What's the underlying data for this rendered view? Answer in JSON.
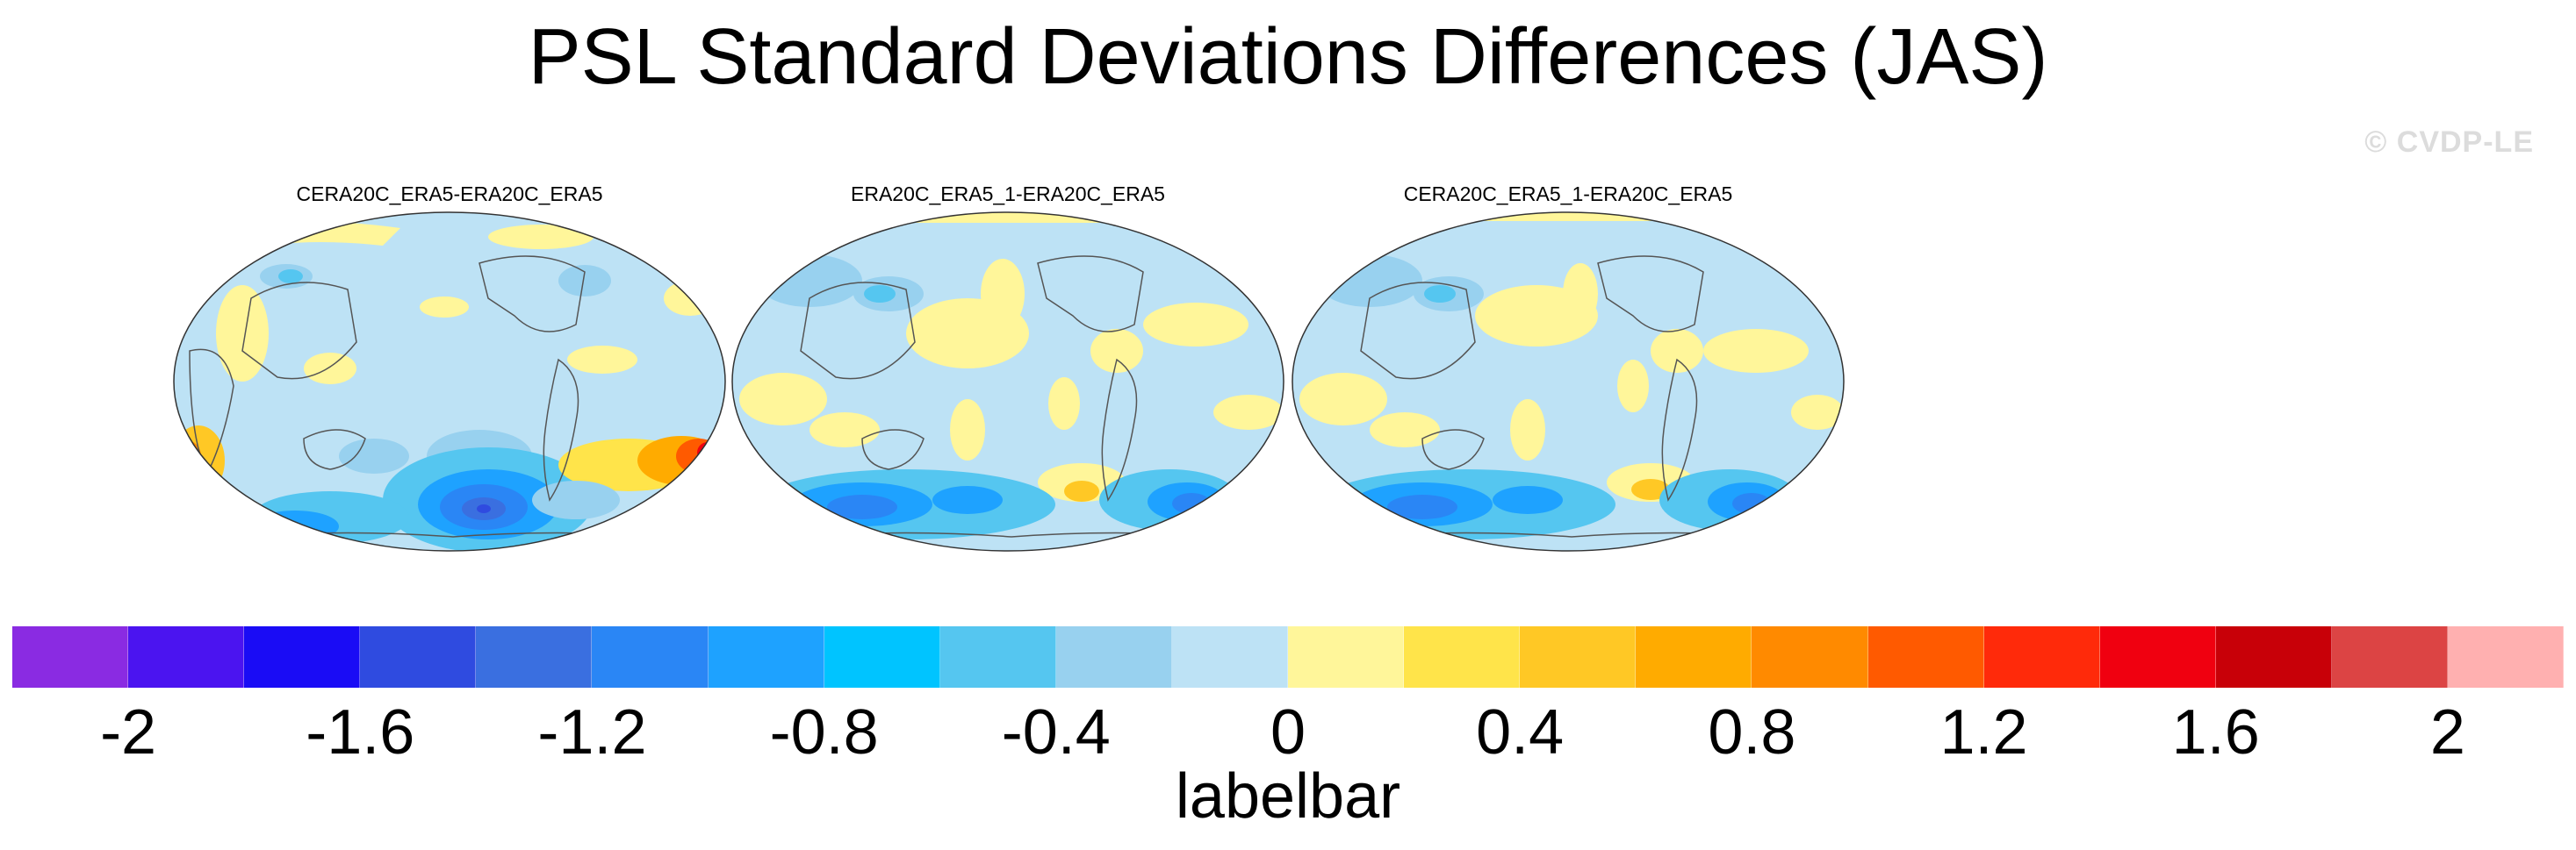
{
  "title": "PSL Standard Deviations Differences (JAS)",
  "watermark": "© CVDP-LE",
  "panels": [
    {
      "title": "CERA20C_ERA5-ERA20C_ERA5"
    },
    {
      "title": "ERA20C_ERA5_1-ERA20C_ERA5"
    },
    {
      "title": "CERA20C_ERA5_1-ERA20C_ERA5"
    }
  ],
  "labelbar": {
    "title": "labelbar",
    "colors": [
      "#8a2be2",
      "#4b14f0",
      "#1a0cf5",
      "#2f4be0",
      "#3a6fe0",
      "#2a86f5",
      "#1ea2ff",
      "#00c4ff",
      "#55c6f0",
      "#98d1ef",
      "#bde2f5",
      "#fff69a",
      "#ffe44a",
      "#ffc825",
      "#ffab00",
      "#ff8a00",
      "#ff5a00",
      "#ff2a0a",
      "#f00010",
      "#c80008",
      "#dc4444",
      "#ffb0b0"
    ],
    "ticks": [
      "-2",
      "-1.6",
      "-1.2",
      "-0.8",
      "-0.4",
      "0",
      "0.4",
      "0.8",
      "1.2",
      "1.6",
      "2"
    ],
    "tick_positions": [
      1,
      3,
      5,
      7,
      9,
      11,
      13,
      15,
      17,
      19,
      21
    ]
  }
}
